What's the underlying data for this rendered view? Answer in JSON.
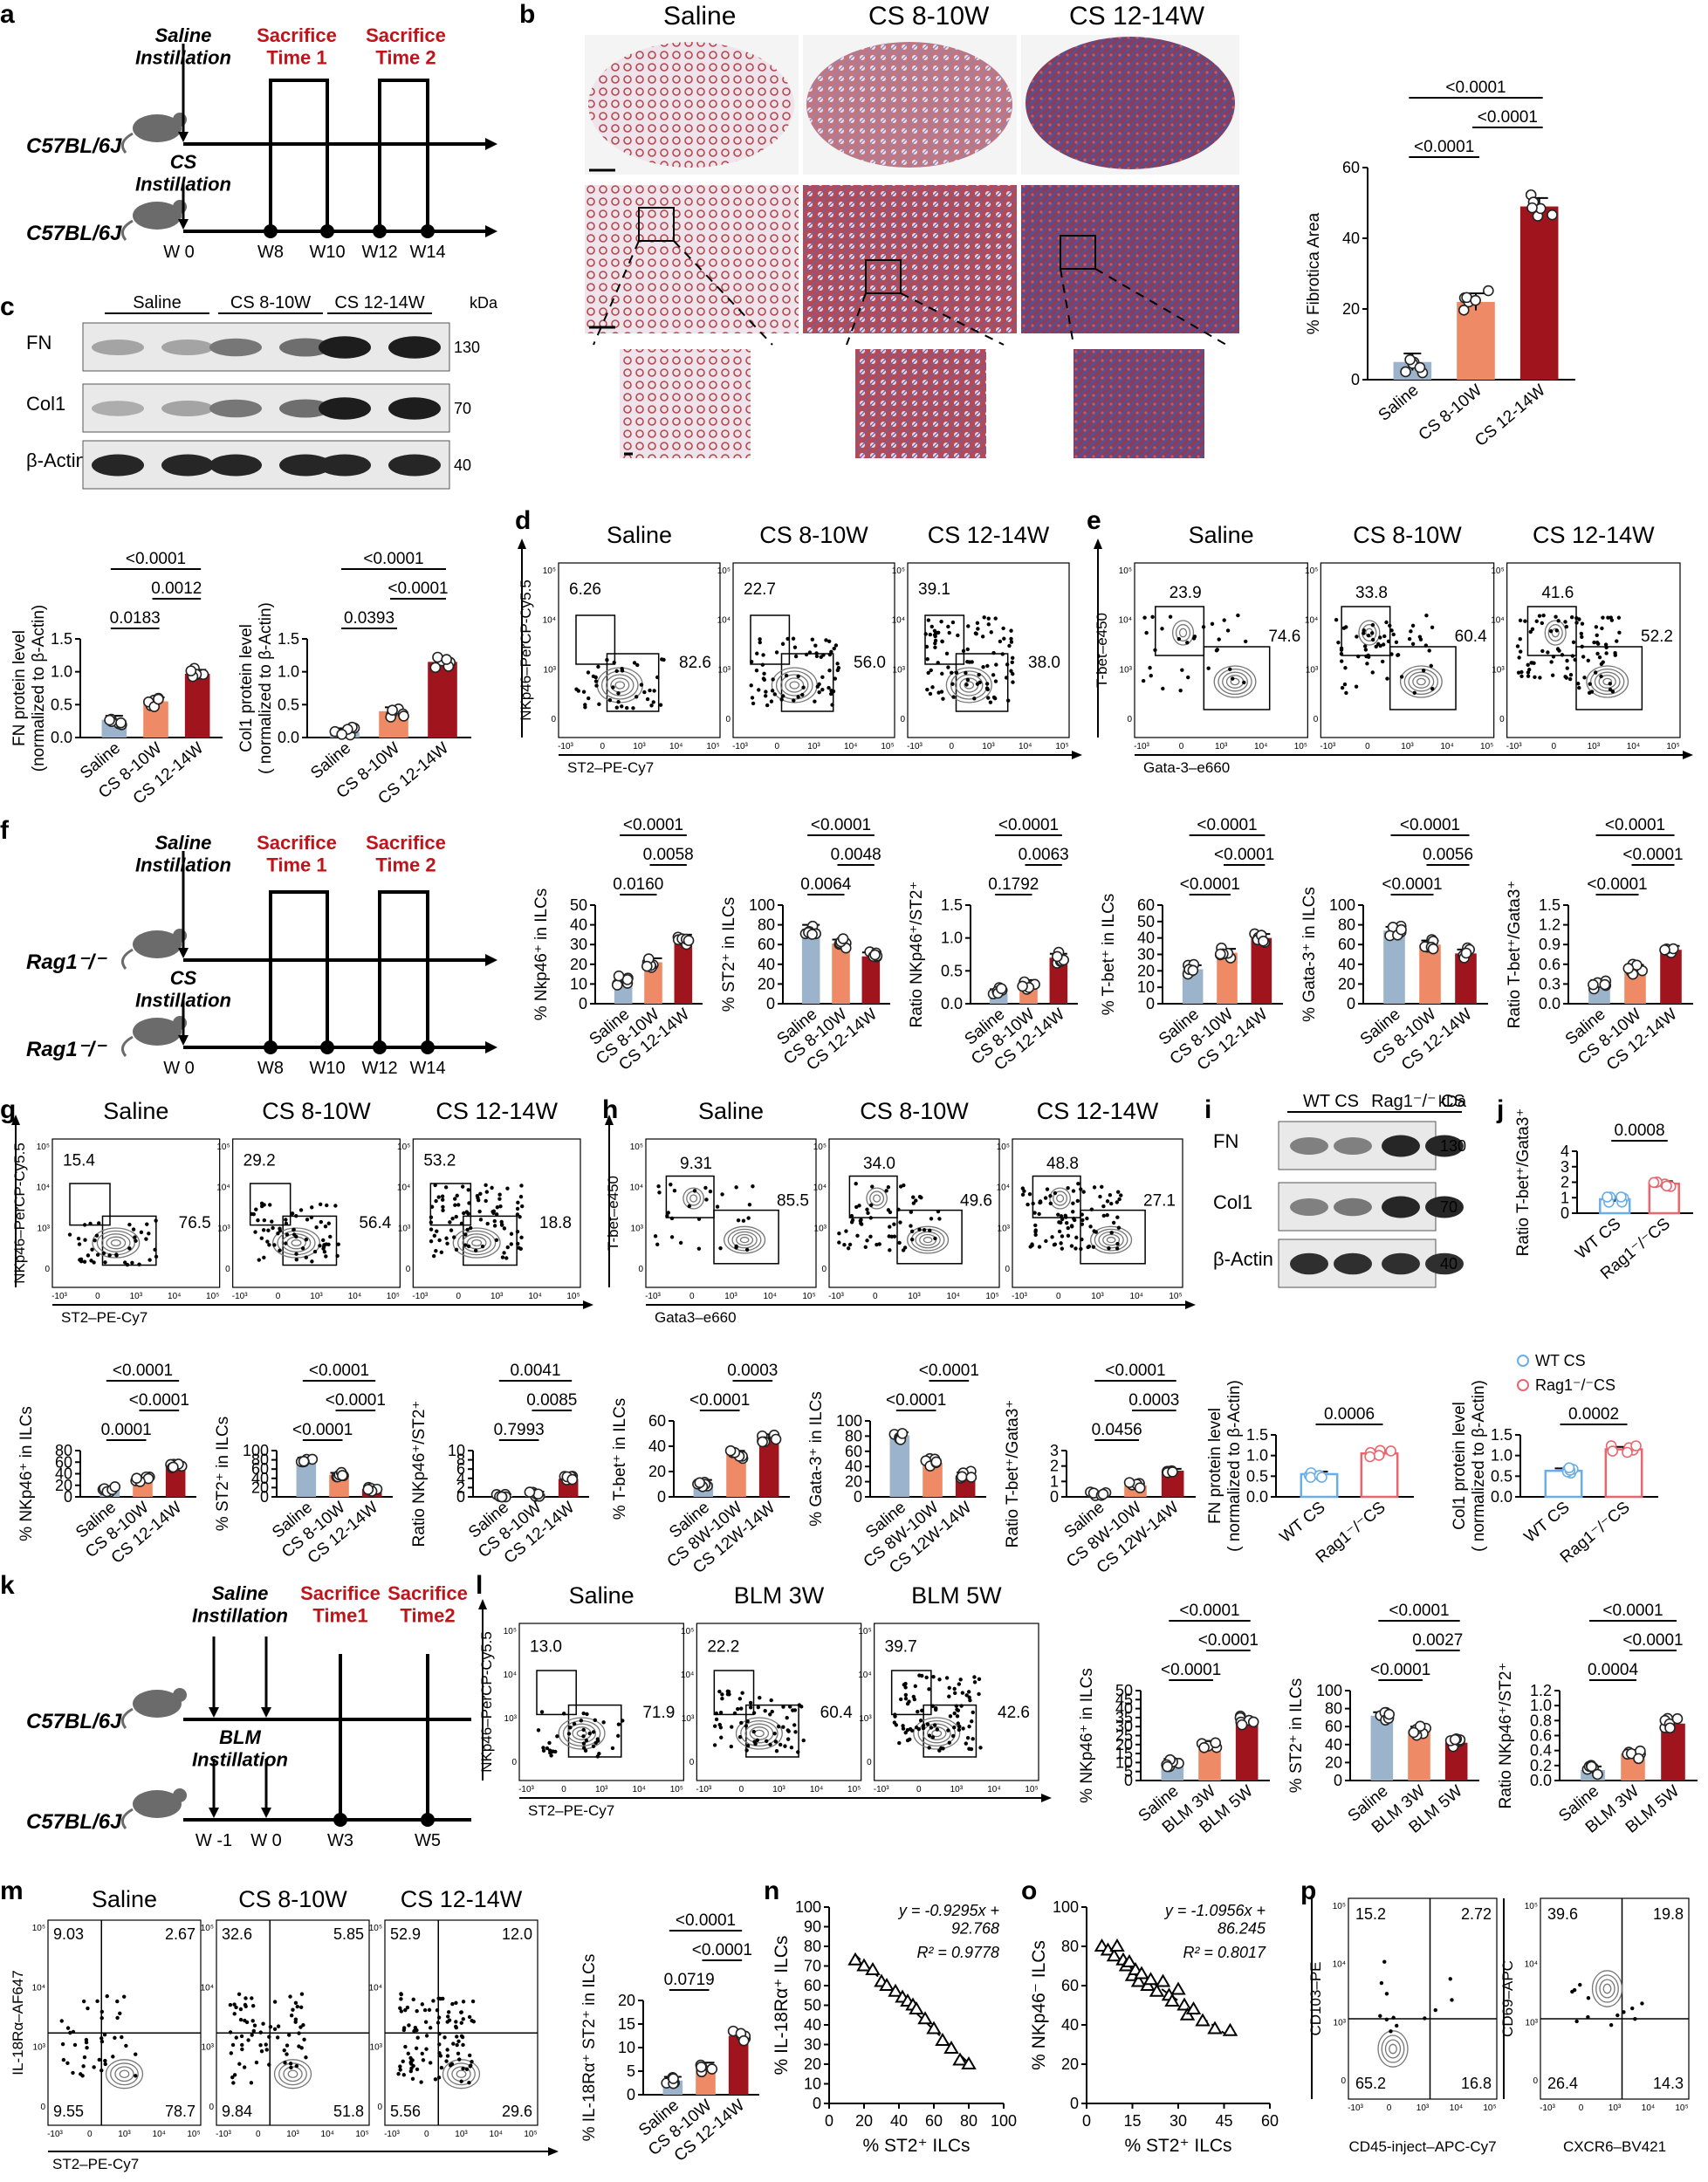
{
  "figure": {
    "labels": [
      "a",
      "b",
      "c",
      "d",
      "e",
      "f",
      "g",
      "h",
      "i",
      "j",
      "k",
      "l",
      "m",
      "n",
      "o",
      "p"
    ]
  },
  "a": {
    "mouse_top": "C57BL/6J",
    "mouse_bottom": "C57BL/6J",
    "saline": "Saline\nInstillation",
    "cs": "CS\nInstillation",
    "sac1": "Sacrifice\nTime 1",
    "sac2": "Sacrifice\nTime 2",
    "weeks": [
      "W 0",
      "W8",
      "W10",
      "W12",
      "W14"
    ]
  },
  "b": {
    "headers": [
      "Saline",
      "CS 8-10W",
      "CS 12-14W"
    ],
    "chart_data": {
      "type": "bar",
      "ylabel": "% Fibrotica Area",
      "categories": [
        "Saline",
        "CS 8-10W",
        "CS 12-14W"
      ],
      "values": [
        5,
        22,
        49
      ],
      "ylim": [
        0,
        60
      ],
      "yticks": [
        "0",
        "20",
        "40",
        "60"
      ],
      "pvalues": [
        "<0.0001",
        "<0.0001",
        "<0.0001"
      ]
    }
  },
  "c": {
    "groups": [
      "Saline",
      "CS 8-10W",
      "CS 12-14W"
    ],
    "kda": "kDa",
    "rows": [
      "FN",
      "Col1",
      "β-Actin"
    ],
    "mw": [
      "130",
      "70",
      "40"
    ],
    "chart_data": [
      {
        "type": "bar",
        "ylabel": "FN protein level\n(normalized to β-Actin)",
        "categories": [
          "Saline",
          "CS 8-10W",
          "CS 12-14W"
        ],
        "values": [
          0.27,
          0.55,
          0.97
        ],
        "ylim": [
          0,
          1.5
        ],
        "yticks": [
          "0.0",
          "0.5",
          "1.0",
          "1.5"
        ],
        "pvalues": [
          "0.0183",
          "0.0012",
          "<0.0001"
        ]
      },
      {
        "type": "bar",
        "ylabel": "Col1 protein level\n( normalized to β-Actin)",
        "categories": [
          "Saline",
          "CS 8-10W",
          "CS 12-14W"
        ],
        "values": [
          0.08,
          0.4,
          1.15
        ],
        "ylim": [
          0,
          1.5
        ],
        "yticks": [
          "0.0",
          "0.5",
          "1.0",
          "1.5"
        ],
        "pvalues": [
          "0.0393",
          "<0.0001",
          "<0.0001"
        ]
      }
    ]
  },
  "d": {
    "headers": [
      "Saline",
      "CS 8-10W",
      "CS 12-14W"
    ],
    "yaxis": "NKp46–PerCP-Cy5.5",
    "xaxis": "ST2–PE-Cy7",
    "gates_top": [
      "6.26",
      "22.7",
      "39.1"
    ],
    "gates_right": [
      "82.6",
      "56.0",
      "38.0"
    ],
    "chart_data": [
      {
        "type": "bar",
        "ylabel": "% Nkp46⁺ in ILCs",
        "categories": [
          "Saline",
          "CS 8-10W",
          "CS 12-14W"
        ],
        "values": [
          12,
          21,
          33
        ],
        "ylim": [
          0,
          50
        ],
        "yticks": [
          "0",
          "10",
          "20",
          "30",
          "40",
          "50"
        ],
        "pvalues": [
          "0.0160",
          "0.0058",
          "<0.0001"
        ]
      },
      {
        "type": "bar",
        "ylabel": "% ST2⁺ in ILCs",
        "categories": [
          "Saline",
          "CS 8-10W",
          "CS 12-14W"
        ],
        "values": [
          76,
          61,
          48
        ],
        "ylim": [
          0,
          100
        ],
        "yticks": [
          "0",
          "20",
          "40",
          "60",
          "80",
          "100"
        ],
        "pvalues": [
          "0.0064",
          "0.0048",
          "<0.0001"
        ]
      },
      {
        "type": "bar",
        "ylabel": "Ratio NKp46⁺/ST2⁺",
        "categories": [
          "Saline",
          "CS 8-10W",
          "CS 12-14W"
        ],
        "values": [
          0.16,
          0.3,
          0.7
        ],
        "ylim": [
          0,
          1.5
        ],
        "yticks": [
          "0.0",
          "0.5",
          "1.0",
          "1.5"
        ],
        "pvalues": [
          "0.1792",
          "0.0063",
          "<0.0001"
        ]
      }
    ]
  },
  "e": {
    "headers": [
      "Saline",
      "CS 8-10W",
      "CS 12-14W"
    ],
    "yaxis": "T-bet–e450",
    "xaxis": "Gata-3–e660",
    "gates_top": [
      "23.9",
      "33.8",
      "41.6"
    ],
    "gates_right": [
      "74.6",
      "60.4",
      "52.2"
    ],
    "chart_data": [
      {
        "type": "bar",
        "ylabel": "% T-bet⁺ in ILCs",
        "categories": [
          "Saline",
          "CS 8-10W",
          "CS 12-14W"
        ],
        "values": [
          21,
          31,
          40
        ],
        "ylim": [
          0,
          60
        ],
        "yticks": [
          "0",
          "10",
          "20",
          "30",
          "40",
          "50",
          "60"
        ],
        "pvalues": [
          "<0.0001",
          "<0.0001",
          "<0.0001"
        ]
      },
      {
        "type": "bar",
        "ylabel": "% Gata-3⁺ in ILCs",
        "categories": [
          "Saline",
          "CS 8-10W",
          "CS 12-14W"
        ],
        "values": [
          74,
          60,
          51
        ],
        "ylim": [
          0,
          100
        ],
        "yticks": [
          "0",
          "20",
          "40",
          "60",
          "80",
          "100"
        ],
        "pvalues": [
          "<0.0001",
          "0.0056",
          "<0.0001"
        ]
      },
      {
        "type": "bar",
        "ylabel": "Ratio T-bet⁺/Gata3⁺",
        "categories": [
          "Saline",
          "CS 8-10W",
          "CS 12-14W"
        ],
        "values": [
          0.3,
          0.53,
          0.82
        ],
        "ylim": [
          0,
          1.5
        ],
        "yticks": [
          "0.0",
          "0.3",
          "0.6",
          "0.9",
          "1.2",
          "1.5"
        ],
        "pvalues": [
          "<0.0001",
          "<0.0001",
          "<0.0001"
        ]
      }
    ]
  },
  "f": {
    "mouse_top": "Rag1⁻/⁻",
    "mouse_bottom": "Rag1⁻/⁻",
    "saline": "Saline\nInstillation",
    "cs": "CS\nInstillation",
    "sac1": "Sacrifice\nTime 1",
    "sac2": "Sacrifice\nTime 2",
    "weeks": [
      "W 0",
      "W8",
      "W10",
      "W12",
      "W14"
    ]
  },
  "g": {
    "headers": [
      "Saline",
      "CS 8-10W",
      "CS 12-14W"
    ],
    "yaxis": "NKp46–PerCP-Cy5.5",
    "xaxis": "ST2–PE-Cy7",
    "gates_top": [
      "15.4",
      "29.2",
      "53.2"
    ],
    "gates_right": [
      "76.5",
      "56.4",
      "18.8"
    ],
    "chart_data": [
      {
        "type": "bar",
        "ylabel": "% NKp46⁺ in ILCs",
        "categories": [
          "Saline",
          "CS 8-10W",
          "CS 12-14W"
        ],
        "values": [
          13,
          31,
          55
        ],
        "ylim": [
          0,
          80
        ],
        "yticks": [
          "0",
          "20",
          "40",
          "60",
          "80"
        ],
        "pvalues": [
          "0.0001",
          "<0.0001",
          "<0.0001"
        ]
      },
      {
        "type": "bar",
        "ylabel": "% ST2⁺ in ILCs",
        "categories": [
          "Saline",
          "CS 8-10W",
          "CS 12-14W"
        ],
        "values": [
          81,
          48,
          17
        ],
        "ylim": [
          0,
          100
        ],
        "yticks": [
          "0",
          "20",
          "40",
          "60",
          "80",
          "100"
        ],
        "pvalues": [
          "<0.0001",
          "<0.0001",
          "<0.0001"
        ]
      },
      {
        "type": "bar",
        "ylabel": "Ratio NKp46⁺/ST2⁺",
        "categories": [
          "Saline",
          "CS 8-10W",
          "CS 12-14W"
        ],
        "values": [
          0.2,
          0.7,
          3.9
        ],
        "ylim": [
          0,
          10
        ],
        "yticks": [
          "0",
          "2",
          "4",
          "6",
          "8",
          "10"
        ],
        "pvalues": [
          "0.7993",
          "0.0085",
          "0.0041"
        ]
      }
    ]
  },
  "h": {
    "headers": [
      "Saline",
      "CS 8-10W",
      "CS 12-14W"
    ],
    "yaxis": "T-bet–e450",
    "xaxis": "Gata3–e660",
    "gates_top": [
      "9.31",
      "34.0",
      "48.8"
    ],
    "gates_right": [
      "85.5",
      "49.6",
      "27.1"
    ],
    "chart_data": [
      {
        "type": "bar",
        "ylabel": "% T-bet⁺ in ILCs",
        "categories": [
          "Saline",
          "CS 8W-10W",
          "CS 12W-14W"
        ],
        "values": [
          11,
          34,
          47
        ],
        "ylim": [
          0,
          60
        ],
        "yticks": [
          "0",
          "20",
          "40",
          "60"
        ],
        "pvalues": [
          "<0.0001",
          "0.0003"
        ]
      },
      {
        "type": "bar",
        "ylabel": "% Gata-3⁺ in ILCs",
        "categories": [
          "Saline",
          "CS 8W-10W",
          "CS 12W-14W"
        ],
        "values": [
          81,
          45,
          28
        ],
        "ylim": [
          0,
          100
        ],
        "yticks": [
          "0",
          "20",
          "40",
          "60",
          "80",
          "100"
        ],
        "pvalues": [
          "<0.0001",
          "<0.0001"
        ]
      },
      {
        "type": "bar",
        "ylabel": "Ratio T-bet⁺/Gata3⁺",
        "categories": [
          "Saline",
          "CS 8W-10W",
          "CS 12W-14W"
        ],
        "values": [
          0.15,
          0.75,
          1.7
        ],
        "ylim": [
          0,
          3
        ],
        "yticks": [
          "0",
          "1",
          "2",
          "3"
        ],
        "pvalues": [
          "0.0456",
          "0.0003",
          "<0.0001"
        ]
      }
    ]
  },
  "i": {
    "groups": [
      "WT CS",
      "Rag1⁻/⁻ CS"
    ],
    "kda": "kDa",
    "rows": [
      "FN",
      "Col1",
      "β-Actin"
    ],
    "mw": [
      "130",
      "70",
      "40"
    ],
    "legend": [
      "WT CS",
      "Rag1⁻/⁻CS"
    ],
    "chart_data": [
      {
        "type": "bar",
        "ylabel": "FN protein level\n( normalized to β-Actin)",
        "categories": [
          "WT CS",
          "Rag1⁻/⁻CS"
        ],
        "values": [
          0.55,
          1.05
        ],
        "ylim": [
          0,
          1.5
        ],
        "yticks": [
          "0.0",
          "0.5",
          "1.0",
          "1.5"
        ],
        "pvalues": [
          "0.0006"
        ]
      },
      {
        "type": "bar",
        "ylabel": "Col1 protein level\n( normalized to β-Actin)",
        "categories": [
          "WT CS",
          "Rag1⁻/⁻CS"
        ],
        "values": [
          0.63,
          1.15
        ],
        "ylim": [
          0,
          1.5
        ],
        "yticks": [
          "0.0",
          "0.5",
          "1.0",
          "1.5"
        ],
        "pvalues": [
          "0.0002"
        ]
      }
    ]
  },
  "j": {
    "chart_data": {
      "type": "bar",
      "ylabel": "Ratio T-bet⁺/Gata3⁺",
      "categories": [
        "WT CS",
        "Rag1⁻/⁻CS"
      ],
      "values": [
        0.9,
        1.9
      ],
      "ylim": [
        0,
        4
      ],
      "yticks": [
        "0",
        "1",
        "2",
        "3",
        "4"
      ],
      "pvalues": [
        "0.0008"
      ]
    }
  },
  "k": {
    "mouse_top": "C57BL/6J",
    "mouse_bottom": "C57BL/6J",
    "saline": "Saline\nInstillation",
    "blm": "BLM\nInstillation",
    "sac1": "Sacrifice\nTime1",
    "sac2": "Sacrifice\nTime2",
    "weeks": [
      "W -1",
      "W 0",
      "W3",
      "W5"
    ]
  },
  "l": {
    "headers": [
      "Saline",
      "BLM 3W",
      "BLM 5W"
    ],
    "yaxis": "NKp46–PerCP-Cy5.5",
    "xaxis": "ST2–PE-Cy7",
    "gates_top": [
      "13.0",
      "22.2",
      "39.7"
    ],
    "gates_right": [
      "71.9",
      "60.4",
      "42.6"
    ],
    "chart_data": [
      {
        "type": "bar",
        "ylabel": "% NKp46⁺ in ILCs",
        "categories": [
          "Saline",
          "BLM 3W",
          "BLM 5W"
        ],
        "values": [
          10,
          20,
          33
        ],
        "ylim": [
          0,
          50
        ],
        "yticks": [
          "0",
          "5",
          "10",
          "15",
          "20",
          "25",
          "30",
          "35",
          "40",
          "45",
          "50"
        ],
        "pvalues": [
          "<0.0001",
          "<0.0001",
          "<0.0001"
        ]
      },
      {
        "type": "bar",
        "ylabel": "% ST2⁺ in ILCs",
        "categories": [
          "Saline",
          "BLM 3W",
          "BLM 5W"
        ],
        "values": [
          72,
          56,
          42
        ],
        "ylim": [
          0,
          100
        ],
        "yticks": [
          "0",
          "20",
          "40",
          "60",
          "80",
          "100"
        ],
        "pvalues": [
          "<0.0001",
          "0.0027",
          "<0.0001"
        ]
      },
      {
        "type": "bar",
        "ylabel": "Ratio NKp46⁺/ST2⁺",
        "categories": [
          "Saline",
          "BLM 3W",
          "BLM 5W"
        ],
        "values": [
          0.14,
          0.36,
          0.76
        ],
        "ylim": [
          0,
          1.2
        ],
        "yticks": [
          "0.0",
          "0.2",
          "0.4",
          "0.6",
          "0.8",
          "1.0",
          "1.2"
        ],
        "pvalues": [
          "0.0004",
          "<0.0001",
          "<0.0001"
        ]
      }
    ]
  },
  "m": {
    "headers": [
      "Saline",
      "CS 8-10W",
      "CS 12-14W"
    ],
    "yaxis": "IL-18Rα–AF647",
    "xaxis": "ST2–PE-Cy7",
    "quads": [
      [
        "9.03",
        "2.67",
        "9.55",
        "78.7"
      ],
      [
        "32.6",
        "5.85",
        "9.84",
        "51.8"
      ],
      [
        "52.9",
        "12.0",
        "5.56",
        "29.6"
      ]
    ],
    "chart_data": {
      "type": "bar",
      "ylabel": "% IL-18Rα⁺ ST2⁺ in ILCs",
      "categories": [
        "Saline",
        "CS 8-10W",
        "CS 12-14W"
      ],
      "values": [
        3,
        6,
        12.5
      ],
      "ylim": [
        0,
        20
      ],
      "yticks": [
        "0",
        "5",
        "10",
        "15",
        "20"
      ],
      "pvalues": [
        "0.0719",
        "<0.0001",
        "<0.0001"
      ]
    }
  },
  "n": {
    "chart_data": {
      "type": "scatter",
      "xlabel": "% ST2⁺ ILCs",
      "ylabel": "% IL-18Rα⁺ ILCs",
      "xlim": [
        0,
        100
      ],
      "ylim": [
        0,
        100
      ],
      "xticks": [
        "0",
        "20",
        "40",
        "60",
        "80",
        "100"
      ],
      "yticks": [
        "0",
        "10",
        "20",
        "30",
        "40",
        "50",
        "60",
        "70",
        "80",
        "90",
        "100"
      ],
      "x": [
        15,
        20,
        25,
        30,
        33,
        38,
        42,
        45,
        48,
        50,
        55,
        60,
        65,
        70,
        75,
        80
      ],
      "y": [
        73,
        70,
        68,
        62,
        60,
        57,
        54,
        52,
        50,
        48,
        43,
        38,
        32,
        28,
        22,
        20
      ],
      "equation": "y = -0.9295x +\n92.768",
      "r2": "R² = 0.9778"
    }
  },
  "o": {
    "chart_data": {
      "type": "scatter",
      "xlabel": "% ST2⁺  ILCs",
      "ylabel": "% NKp46⁻ ILCs",
      "xlim": [
        0,
        60
      ],
      "ylim": [
        0,
        100
      ],
      "xticks": [
        "0",
        "15",
        "30",
        "45",
        "60"
      ],
      "yticks": [
        "0",
        "20",
        "40",
        "60",
        "80",
        "100"
      ],
      "x": [
        5,
        7,
        9,
        10,
        12,
        13,
        14,
        15,
        16,
        17,
        18,
        20,
        21,
        23,
        25,
        27,
        28,
        30,
        32,
        33,
        35,
        38,
        42,
        47
      ],
      "y": [
        80,
        78,
        75,
        80,
        73,
        70,
        72,
        65,
        68,
        62,
        66,
        60,
        63,
        57,
        62,
        55,
        52,
        58,
        50,
        45,
        48,
        42,
        38,
        37
      ],
      "equation": "y = -1.0956x +\n86.245",
      "r2": "R² = 0.8017"
    }
  },
  "p": {
    "plots": [
      {
        "yaxis": "CD103–PE",
        "xaxis": "CD45-inject–APC-Cy7",
        "quads": [
          "15.2",
          "2.72",
          "65.2",
          "16.8"
        ]
      },
      {
        "yaxis": "CD69–APC",
        "xaxis": "CXCR6–BV421",
        "quads": [
          "39.6",
          "19.8",
          "26.4",
          "14.3"
        ]
      }
    ]
  },
  "colors": {
    "saline": "#9bb4cc",
    "mid": "#ee8a66",
    "high": "#a0151d",
    "wt": "#6aaee8",
    "rag": "#e8676e",
    "sacrifice": "#c0141b"
  }
}
